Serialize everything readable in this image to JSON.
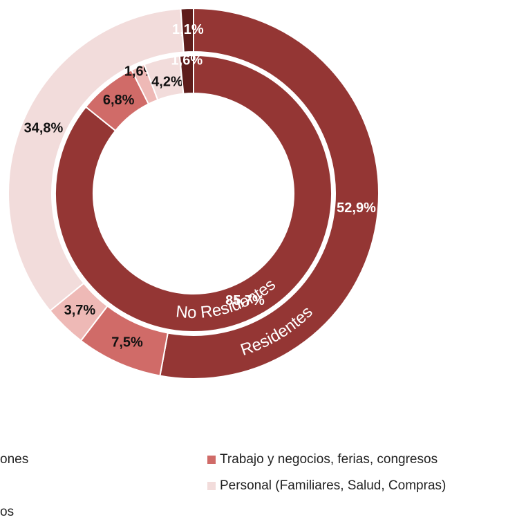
{
  "chart_data": {
    "type": "nested-donut",
    "categories": [
      "ones",
      "Trabajo y negocios, ferias, congresos",
      null,
      "Personal (Familiares, Salud, Compras)",
      "os"
    ],
    "colors": [
      "#943634",
      "#d06b68",
      "#eeb9b6",
      "#f2dcdb",
      "#5e1d1c"
    ],
    "series": [
      {
        "name": "Residentes",
        "values": [
          52.9,
          7.5,
          3.7,
          34.8,
          1.1
        ],
        "value_labels": [
          "52,9%",
          "7,5%",
          "3,7%",
          "34,8%",
          "1,1%"
        ]
      },
      {
        "name": "No Residentes",
        "values": [
          85.7,
          6.8,
          1.6,
          4.2,
          1.6
        ],
        "value_labels": [
          "85,7%",
          "6,8%",
          "1,6%",
          "4,2%",
          "1,6%"
        ]
      }
    ],
    "legend": "bottom"
  }
}
